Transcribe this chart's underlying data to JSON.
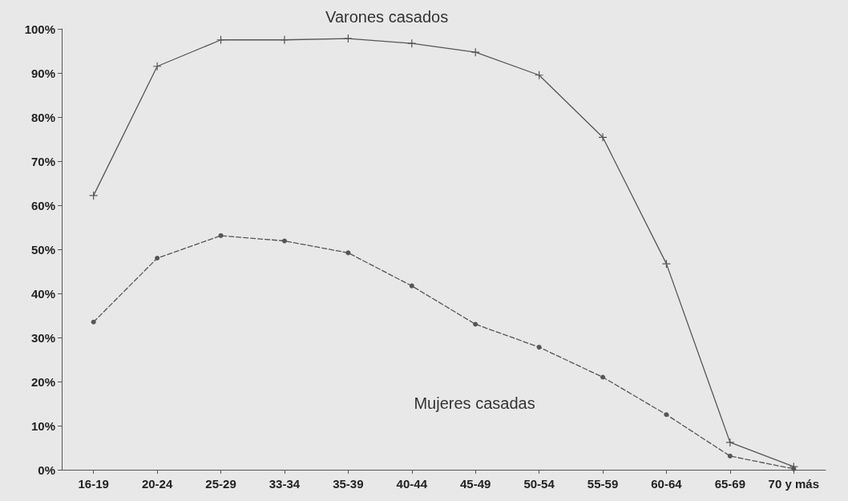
{
  "chart_data": {
    "type": "line",
    "categories": [
      "16-19",
      "20-24",
      "25-29",
      "33-34",
      "35-39",
      "40-44",
      "45-49",
      "50-54",
      "55-59",
      "60-64",
      "65-69",
      "70 y más"
    ],
    "series": [
      {
        "name": "Varones casados",
        "color": "#555555",
        "marker": "cross",
        "line_style": "solid",
        "values": [
          62.2,
          91.5,
          97.5,
          97.5,
          97.8,
          96.7,
          94.7,
          89.5,
          75.4,
          46.7,
          6.2,
          0.7
        ]
      },
      {
        "name": "Mujeres casadas",
        "color": "#555555",
        "marker": "circle",
        "line_style": "dashed",
        "values": [
          33.5,
          48,
          53.1,
          51.9,
          49.2,
          41.7,
          33,
          27.8,
          21,
          12.5,
          3.1,
          0.2
        ]
      }
    ],
    "ylim": [
      0,
      100
    ],
    "yticks": [
      {
        "value": 0,
        "label": "0%"
      },
      {
        "value": 10,
        "label": "10%"
      },
      {
        "value": 20,
        "label": "20%"
      },
      {
        "value": 30,
        "label": "30%"
      },
      {
        "value": 40,
        "label": "40%"
      },
      {
        "value": 50,
        "label": "50%"
      },
      {
        "value": 60,
        "label": "60%"
      },
      {
        "value": 70,
        "label": "70%"
      },
      {
        "value": 80,
        "label": "80%"
      },
      {
        "value": 90,
        "label": "90%"
      },
      {
        "value": 100,
        "label": "100%"
      }
    ],
    "grid": false,
    "legend": false
  }
}
